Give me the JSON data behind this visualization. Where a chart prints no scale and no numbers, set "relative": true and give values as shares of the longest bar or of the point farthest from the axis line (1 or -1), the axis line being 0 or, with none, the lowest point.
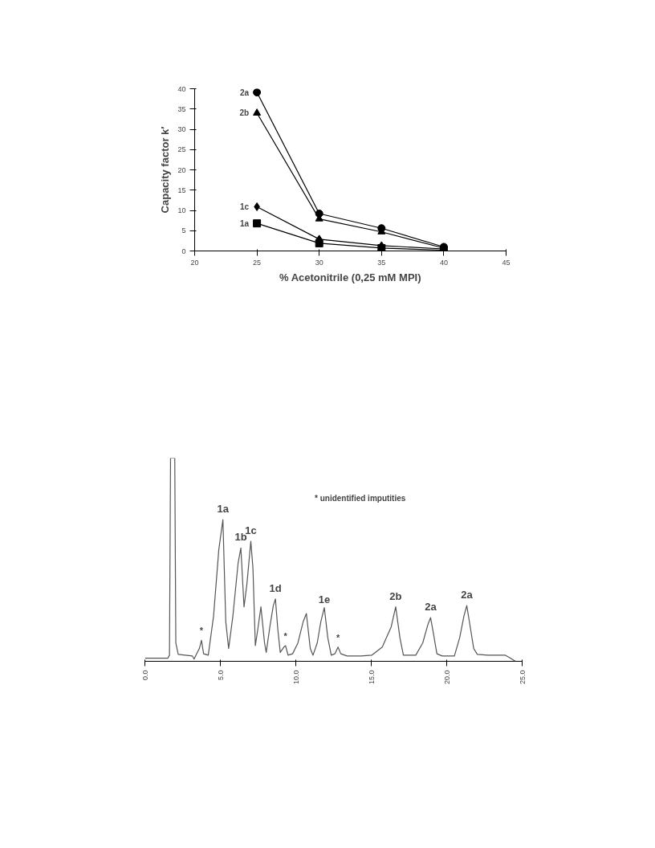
{
  "chart_data": [
    {
      "type": "line",
      "xlabel": "% Acetonitrile (0,25 mM MPI)",
      "ylabel": "Capacity factor k′",
      "x": [
        25,
        30,
        35,
        40
      ],
      "series": [
        {
          "name": "2a",
          "color": "#000000",
          "marker": "circle",
          "values": [
            39.1,
            9.2,
            5.6,
            1.0
          ]
        },
        {
          "name": "2b",
          "color": "#000000",
          "marker": "triangle",
          "values": [
            34.0,
            7.9,
            4.7,
            0.7
          ]
        },
        {
          "name": "1c",
          "color": "#000000",
          "marker": "diamond",
          "values": [
            10.9,
            2.9,
            1.3,
            0.5
          ]
        },
        {
          "name": "1a",
          "color": "#000000",
          "marker": "square",
          "values": [
            6.8,
            1.9,
            0.7,
            0.2
          ]
        }
      ],
      "xlim": [
        20,
        45
      ],
      "xticks": [
        20,
        25,
        30,
        35,
        40,
        45
      ],
      "ylim": [
        0,
        40
      ],
      "yticks": [
        0,
        5,
        10,
        15,
        20,
        25,
        30,
        35,
        40
      ],
      "grid": false
    },
    {
      "type": "line",
      "relative": true,
      "marker": "none",
      "xlim": [
        0,
        25
      ],
      "xticks": [
        {
          "value": 0,
          "label": "0.0"
        },
        {
          "value": 5,
          "label": "5.0"
        },
        {
          "value": 10,
          "label": "10.0"
        },
        {
          "value": 15,
          "label": "15.0"
        },
        {
          "value": 20,
          "label": "20.0"
        },
        {
          "value": 25,
          "label": "25.0"
        }
      ],
      "series": [
        {
          "color": "#555555",
          "x": [
            0,
            1.52,
            1.63,
            1.7,
            1.98,
            2.05,
            2.21,
            2.68,
            3.15,
            3.26,
            3.38,
            3.61,
            3.75,
            3.89,
            4.2,
            4.55,
            4.9,
            5.17,
            5.36,
            5.55,
            5.83,
            6.18,
            6.36,
            6.57,
            6.76,
            7.02,
            7.16,
            7.32,
            7.48,
            7.69,
            7.93,
            8.04,
            8.28,
            8.51,
            8.65,
            8.81,
            8.97,
            9.21,
            9.32,
            9.49,
            9.79,
            10.14,
            10.49,
            10.7,
            10.96,
            11.14,
            11.42,
            11.66,
            11.89,
            12.12,
            12.35,
            12.59,
            12.8,
            12.98,
            13.4,
            14.34,
            15.03,
            15.73,
            16.32,
            16.62,
            16.9,
            17.13,
            17.95,
            18.41,
            18.76,
            18.93,
            19.11,
            19.35,
            19.7,
            20.51,
            20.86,
            21.14,
            21.33,
            21.56,
            21.79,
            22.03,
            22.73,
            23.89,
            24.24,
            24.55
          ],
          "values": [
            0.015,
            0.015,
            0.03,
            1,
            1,
            0.09,
            0.034,
            0.03,
            0.026,
            0.011,
            0.03,
            0.063,
            0.103,
            0.037,
            0.03,
            0.222,
            0.551,
            0.697,
            0.195,
            0.063,
            0.222,
            0.485,
            0.558,
            0.268,
            0.38,
            0.591,
            0.459,
            0.077,
            0.156,
            0.268,
            0.09,
            0.044,
            0.169,
            0.274,
            0.307,
            0.156,
            0.044,
            0.07,
            0.077,
            0.03,
            0.037,
            0.09,
            0.195,
            0.235,
            0.063,
            0.03,
            0.09,
            0.195,
            0.264,
            0.116,
            0.03,
            0.037,
            0.07,
            0.037,
            0.026,
            0.026,
            0.03,
            0.07,
            0.169,
            0.268,
            0.116,
            0.03,
            0.03,
            0.09,
            0.182,
            0.215,
            0.142,
            0.037,
            0.026,
            0.026,
            0.116,
            0.222,
            0.274,
            0.169,
            0.063,
            0.034,
            0.03,
            0.03,
            0.015,
            0
          ]
        }
      ],
      "annotations": [
        {
          "text": "1a",
          "x": 5.17,
          "y": 0.697
        },
        {
          "text": "1b",
          "x": 6.36,
          "y": 0.558
        },
        {
          "text": "1c",
          "x": 7.02,
          "y": 0.591
        },
        {
          "text": "1d",
          "x": 8.65,
          "y": 0.307
        },
        {
          "text": "1e",
          "x": 11.89,
          "y": 0.264
        },
        {
          "text": "2b",
          "x": 16.62,
          "y": 0.268
        },
        {
          "text": "2a",
          "x": 18.93,
          "y": 0.215
        },
        {
          "text": "2a",
          "x": 21.33,
          "y": 0.274
        },
        {
          "text": "*",
          "x": 3.75,
          "y": 0.103
        },
        {
          "text": "*",
          "x": 9.32,
          "y": 0.077
        },
        {
          "text": "*",
          "x": 12.8,
          "y": 0.07
        },
        "* unidentified imputities"
      ],
      "grid": false
    }
  ]
}
